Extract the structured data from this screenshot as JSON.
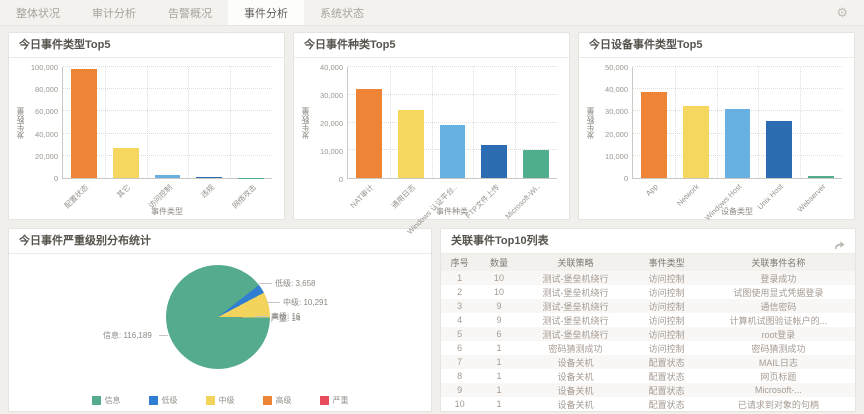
{
  "nav": {
    "tabs": [
      {
        "label": "整体状况",
        "active": false
      },
      {
        "label": "审计分析",
        "active": false
      },
      {
        "label": "告警概况",
        "active": false
      },
      {
        "label": "事件分析",
        "active": true
      },
      {
        "label": "系统状态",
        "active": false
      }
    ]
  },
  "chart_data": [
    {
      "type": "bar",
      "title": "今日事件类型Top5",
      "xlabel": "事件类型",
      "ylabel": "发生数量",
      "ylim": [
        0,
        100000
      ],
      "ytick": 20000,
      "grid": true,
      "categories": [
        "配置状态",
        "其它",
        "访问控制",
        "违规",
        "网络攻击"
      ],
      "values": [
        98500,
        27000,
        2500,
        1100,
        300
      ],
      "colors": [
        "#ee8435",
        "#f5d75f",
        "#67b1e2",
        "#2b6cb3",
        "#4fae8c"
      ]
    },
    {
      "type": "bar",
      "title": "今日事件种类Top5",
      "xlabel": "事件种类",
      "ylabel": "发生数量",
      "ylim": [
        0,
        40000
      ],
      "ytick": 10000,
      "grid": true,
      "categories": [
        "NAT审计",
        "通用日志",
        "Windows 认证平台..",
        "FTP文件上传",
        "Microsoft-Wi.."
      ],
      "values": [
        32200,
        24500,
        19200,
        12000,
        10200
      ],
      "colors": [
        "#ee8435",
        "#f5d75f",
        "#67b1e2",
        "#2b6cb3",
        "#4fae8c"
      ]
    },
    {
      "type": "bar",
      "title": "今日设备事件类型Top5",
      "xlabel": "设备类型",
      "ylabel": "发生数量",
      "ylim": [
        0,
        50000
      ],
      "ytick": 10000,
      "grid": true,
      "categories": [
        "App",
        "Network",
        "Windows Host",
        "Unix Host",
        "Webserver"
      ],
      "values": [
        38800,
        32300,
        31000,
        25500,
        1000
      ],
      "colors": [
        "#ee8435",
        "#f5d75f",
        "#67b1e2",
        "#2b6cb3",
        "#4fae8c"
      ]
    },
    {
      "type": "pie",
      "title": "今日事件严重级别分布统计",
      "legend_position": "bottom",
      "slices": [
        {
          "label": "信息",
          "value": 116189,
          "color": "#55ab8d"
        },
        {
          "label": "低级",
          "value": 3658,
          "color": "#2f7ed2"
        },
        {
          "label": "中级",
          "value": 10291,
          "color": "#f2d45c"
        },
        {
          "label": "高级",
          "value": 16,
          "color": "#ee8435"
        },
        {
          "label": "严重",
          "value": 14,
          "color": "#e64c5c"
        }
      ]
    }
  ],
  "table": {
    "title": "关联事件Top10列表",
    "headers": [
      "序号",
      "数量",
      "关联策略",
      "事件类型",
      "关联事件名称"
    ],
    "rows": [
      [
        "1",
        "10",
        "测试-堡垒机绕行",
        "访问控制",
        "登录成功"
      ],
      [
        "2",
        "10",
        "测试-堡垒机绕行",
        "访问控制",
        "试图使用显式凭据登录"
      ],
      [
        "3",
        "9",
        "测试-堡垒机绕行",
        "访问控制",
        "通信密码"
      ],
      [
        "4",
        "9",
        "测试-堡垒机绕行",
        "访问控制",
        "计算机试图验证帐户的..."
      ],
      [
        "5",
        "6",
        "测试-堡垒机绕行",
        "访问控制",
        "root登录"
      ],
      [
        "6",
        "1",
        "密码猜测成功",
        "访问控制",
        "密码猜测成功"
      ],
      [
        "7",
        "1",
        "设备关机",
        "配置状态",
        "MAIL日志"
      ],
      [
        "8",
        "1",
        "设备关机",
        "配置状态",
        "网页标题"
      ],
      [
        "9",
        "1",
        "设备关机",
        "配置状态",
        "Microsoft-..."
      ],
      [
        "10",
        "1",
        "设备关机",
        "配置状态",
        "已请求到对象的句柄"
      ]
    ]
  }
}
